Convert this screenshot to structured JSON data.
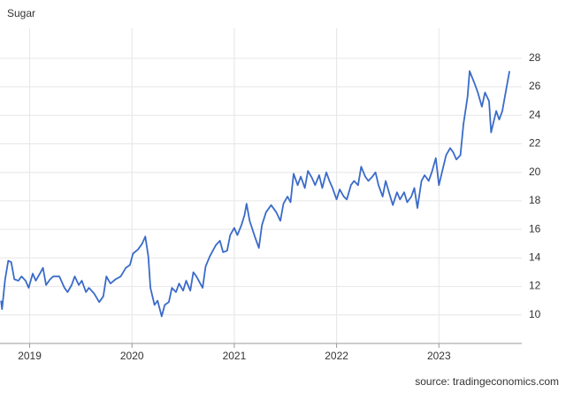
{
  "chart_data": {
    "type": "line",
    "title": "Sugar",
    "source": "source: tradingeconomics.com",
    "x": [
      2018.72,
      2018.73,
      2018.76,
      2018.79,
      2018.82,
      2018.85,
      2018.89,
      2018.92,
      2018.96,
      2018.99,
      2019.03,
      2019.06,
      2019.1,
      2019.13,
      2019.16,
      2019.2,
      2019.23,
      2019.29,
      2019.34,
      2019.37,
      2019.41,
      2019.44,
      2019.48,
      2019.51,
      2019.55,
      2019.58,
      2019.63,
      2019.68,
      2019.72,
      2019.75,
      2019.79,
      2019.84,
      2019.89,
      2019.94,
      2019.98,
      2020.01,
      2020.06,
      2020.1,
      2020.13,
      2020.16,
      2020.18,
      2020.22,
      2020.25,
      2020.29,
      2020.32,
      2020.36,
      2020.39,
      2020.43,
      2020.46,
      2020.5,
      2020.53,
      2020.57,
      2020.6,
      2020.63,
      2020.69,
      2020.72,
      2020.76,
      2020.79,
      2020.82,
      2020.86,
      2020.89,
      2020.93,
      2020.96,
      2021.0,
      2021.03,
      2021.07,
      2021.1,
      2021.12,
      2021.15,
      2021.2,
      2021.24,
      2021.27,
      2021.31,
      2021.36,
      2021.41,
      2021.45,
      2021.48,
      2021.52,
      2021.55,
      2021.58,
      2021.62,
      2021.65,
      2021.69,
      2021.72,
      2021.76,
      2021.79,
      2021.83,
      2021.86,
      2021.9,
      2021.93,
      2021.96,
      2022.0,
      2022.03,
      2022.07,
      2022.1,
      2022.14,
      2022.17,
      2022.21,
      2022.24,
      2022.28,
      2022.31,
      2022.35,
      2022.38,
      2022.41,
      2022.45,
      2022.48,
      2022.52,
      2022.55,
      2022.59,
      2022.62,
      2022.66,
      2022.69,
      2022.73,
      2022.76,
      2022.79,
      2022.83,
      2022.86,
      2022.9,
      2022.93,
      2022.97,
      2023.0,
      2023.04,
      2023.07,
      2023.11,
      2023.14,
      2023.17,
      2023.21,
      2023.24,
      2023.28,
      2023.3,
      2023.35,
      2023.38,
      2023.42,
      2023.45,
      2023.49,
      2023.51,
      2023.56,
      2023.59,
      2023.62,
      2023.66,
      2023.69
    ],
    "series": [
      {
        "name": "Sugar",
        "color": "#3a6bc9",
        "values": [
          11.0,
          10.4,
          12.5,
          13.8,
          13.7,
          12.5,
          12.4,
          12.7,
          12.4,
          11.9,
          12.9,
          12.4,
          12.9,
          13.3,
          12.1,
          12.5,
          12.7,
          12.7,
          11.9,
          11.6,
          12.1,
          12.7,
          12.1,
          12.4,
          11.6,
          11.9,
          11.5,
          10.9,
          11.3,
          12.7,
          12.2,
          12.5,
          12.7,
          13.3,
          13.5,
          14.3,
          14.6,
          15.0,
          15.5,
          14.1,
          11.9,
          10.7,
          11.0,
          9.9,
          10.7,
          10.9,
          11.9,
          11.6,
          12.2,
          11.7,
          12.4,
          11.7,
          13.0,
          12.7,
          11.9,
          13.4,
          14.1,
          14.5,
          14.9,
          15.2,
          14.4,
          14.5,
          15.6,
          16.1,
          15.6,
          16.3,
          17.0,
          17.8,
          16.6,
          15.5,
          14.7,
          16.3,
          17.2,
          17.7,
          17.2,
          16.6,
          17.8,
          18.3,
          17.9,
          19.9,
          19.1,
          19.7,
          18.9,
          20.1,
          19.6,
          19.1,
          19.8,
          18.9,
          20.0,
          19.4,
          18.9,
          18.1,
          18.8,
          18.3,
          18.1,
          19.1,
          19.4,
          19.1,
          20.4,
          19.7,
          19.4,
          19.7,
          20.0,
          19.1,
          18.3,
          19.4,
          18.4,
          17.7,
          18.6,
          18.1,
          18.6,
          17.9,
          18.3,
          18.9,
          17.5,
          19.4,
          19.8,
          19.4,
          20.0,
          21.0,
          19.1,
          20.3,
          21.2,
          21.7,
          21.4,
          20.9,
          21.2,
          23.4,
          25.3,
          27.1,
          26.2,
          25.6,
          24.6,
          25.6,
          25.0,
          22.8,
          24.3,
          23.7,
          24.3,
          25.9,
          27.1
        ]
      }
    ],
    "xlim": [
      2018.71,
      2023.81
    ],
    "xticks": [
      2019,
      2020,
      2021,
      2022,
      2023
    ],
    "ylim": [
      8,
      30.1
    ],
    "yticks": [
      10,
      12,
      14,
      16,
      18,
      20,
      22,
      24,
      26,
      28
    ],
    "grid": true
  }
}
